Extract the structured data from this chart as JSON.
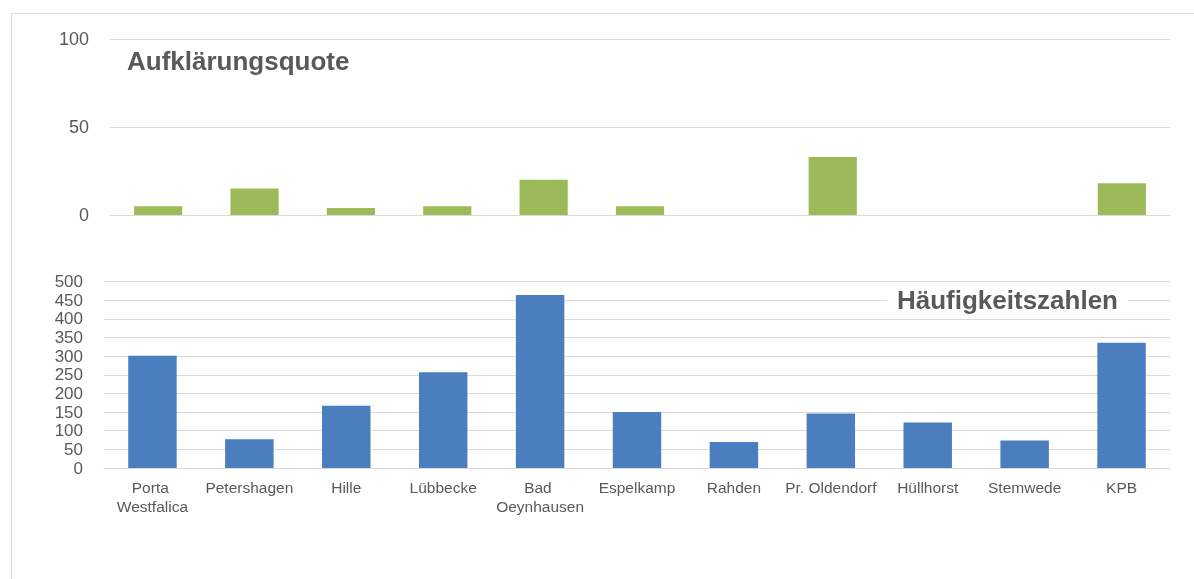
{
  "chart_data": [
    {
      "type": "bar",
      "title": "Aufklärungsquote",
      "categories": [
        "Porta Westfalica",
        "Petershagen",
        "Hille",
        "Lübbecke",
        "Bad Oeynhausen",
        "Espelkamp",
        "Rahden",
        "Pr. Oldendorf",
        "Hüllhorst",
        "Stemwede",
        "KPB"
      ],
      "values": [
        5,
        15,
        4,
        5,
        20,
        5,
        null,
        33,
        null,
        null,
        18
      ],
      "color": "#9bbb59",
      "ylim": [
        0,
        100
      ],
      "yticks": [
        0,
        50,
        100
      ],
      "grid": true,
      "tick_labels": "y"
    },
    {
      "type": "bar",
      "title": "Häufigkeitszahlen",
      "categories": [
        "Porta Westfalica",
        "Petershagen",
        "Hille",
        "Lübbecke",
        "Bad Oeynhausen",
        "Espelkamp",
        "Rahden",
        "Pr. Oldendorf",
        "Hüllhorst",
        "Stemwede",
        "KPB"
      ],
      "values": [
        301,
        77,
        167,
        257,
        464,
        150,
        70,
        146,
        122,
        74,
        336
      ],
      "color": "#4a7ebf",
      "ylim": [
        0,
        500
      ],
      "yticks": [
        0,
        50,
        100,
        150,
        200,
        250,
        300,
        350,
        400,
        450,
        500
      ],
      "grid": true
    }
  ]
}
